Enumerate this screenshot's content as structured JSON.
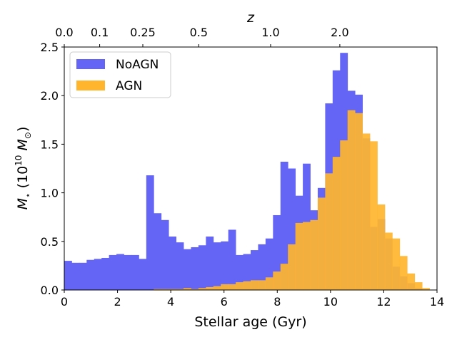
{
  "chart_data": {
    "type": "bar",
    "subtype": "overlaid-histogram",
    "xlabel": "Stellar age (Gyr)",
    "ylabel_main": "M",
    "ylabel_sub": "⋆",
    "ylabel_open": " (10",
    "ylabel_exp": "10",
    "ylabel_msun": " M",
    "ylabel_sun": "⊙",
    "ylabel_close": ")",
    "top_axis_label": "z",
    "xlim": [
      0,
      14
    ],
    "ylim": [
      0,
      2.5
    ],
    "xticks": [
      0,
      2,
      4,
      6,
      8,
      10,
      12,
      14
    ],
    "yticks": [
      "0.0",
      "0.5",
      "1.0",
      "1.5",
      "2.0",
      "2.5"
    ],
    "top_ticks": [
      {
        "label": "0.0",
        "age": 0.0
      },
      {
        "label": "0.1",
        "age": 1.33
      },
      {
        "label": "0.25",
        "age": 2.95
      },
      {
        "label": "0.5",
        "age": 5.05
      },
      {
        "label": "1.0",
        "age": 7.75
      },
      {
        "label": "2.0",
        "age": 10.35
      }
    ],
    "bin_width": 0.28,
    "legend_position": "top-left",
    "series": [
      {
        "name": "NoAGN",
        "color": "#6464f5",
        "values": [
          0.3,
          0.28,
          0.28,
          0.31,
          0.32,
          0.33,
          0.36,
          0.37,
          0.36,
          0.36,
          0.32,
          1.18,
          0.79,
          0.72,
          0.55,
          0.49,
          0.42,
          0.44,
          0.46,
          0.55,
          0.49,
          0.5,
          0.62,
          0.36,
          0.37,
          0.41,
          0.47,
          0.53,
          0.77,
          1.32,
          1.25,
          0.97,
          1.3,
          0.82,
          1.05,
          1.92,
          2.26,
          2.44,
          2.05,
          2.01,
          1.56,
          0.65,
          0.73,
          0.53,
          0.24,
          0.14,
          0.07,
          0.02,
          0.0,
          0.0
        ]
      },
      {
        "name": "AGN",
        "color": "#ffb52e",
        "values": [
          0.0,
          0.0,
          0.0,
          0.0,
          0.0,
          0.0,
          0.0,
          0.0,
          0.0,
          0.0,
          0.0,
          0.0,
          0.01,
          0.01,
          0.01,
          0.01,
          0.02,
          0.01,
          0.02,
          0.03,
          0.04,
          0.06,
          0.06,
          0.08,
          0.09,
          0.1,
          0.1,
          0.13,
          0.19,
          0.27,
          0.47,
          0.69,
          0.7,
          0.72,
          0.95,
          1.2,
          1.37,
          1.54,
          1.85,
          1.82,
          1.61,
          1.53,
          0.88,
          0.59,
          0.53,
          0.35,
          0.17,
          0.08,
          0.02,
          0.0
        ]
      }
    ]
  }
}
